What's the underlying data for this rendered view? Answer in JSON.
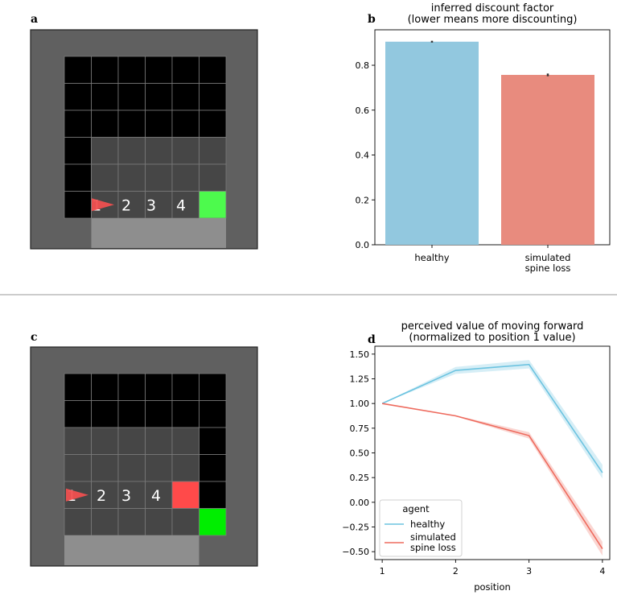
{
  "panels": {
    "a": {
      "label": "a",
      "numbers": [
        "1",
        "2",
        "3",
        "4"
      ]
    },
    "b": {
      "label": "b"
    },
    "c": {
      "label": "c",
      "numbers": [
        "1",
        "2",
        "3",
        "4"
      ]
    },
    "d": {
      "label": "d"
    }
  },
  "colors": {
    "wall": "#606060",
    "black_cell": "#000000",
    "floor": "#464646",
    "ledge": "#8e8e8e",
    "grid_line": "#7a7a7a",
    "goal_green_a": "#4dfa4d",
    "goal_green_c": "#00ee00",
    "red_block": "#ff4a4a",
    "agent": "#f05050",
    "healthy": "#92c8df",
    "spine_loss": "#e88b7e",
    "healthy_line": "#6cc3e0",
    "spine_loss_line": "#ee6b5e"
  },
  "chart_data": [
    {
      "type": "bar",
      "title": "inferred discount factor\n(lower means more discounting)",
      "title_lines": [
        "inferred discount factor",
        "(lower means more discounting)"
      ],
      "categories": [
        "healthy",
        "simulated\nspine loss"
      ],
      "category_lines": [
        [
          "healthy"
        ],
        [
          "simulated",
          "spine loss"
        ]
      ],
      "values": [
        0.905,
        0.757
      ],
      "error": [
        0.004,
        0.006
      ],
      "ylim": [
        0,
        0.958
      ],
      "yticks": [
        0.0,
        0.2,
        0.4,
        0.6,
        0.8
      ],
      "ytick_labels": [
        "0.0",
        "0.2",
        "0.4",
        "0.6",
        "0.8"
      ],
      "xlabel": "",
      "ylabel": ""
    },
    {
      "type": "line",
      "title": "perceived value of moving forward\n(normalized to position 1 value)",
      "title_lines": [
        "perceived value of moving forward",
        "(normalized to position 1 value)"
      ],
      "x": [
        1,
        2,
        3,
        4
      ],
      "xticks": [
        1,
        2,
        3,
        4
      ],
      "xtick_labels": [
        "1",
        "2",
        "3",
        "4"
      ],
      "xlim": [
        0.9,
        4.1
      ],
      "ylim": [
        -0.58,
        1.58
      ],
      "yticks": [
        -0.5,
        -0.25,
        0.0,
        0.25,
        0.5,
        0.75,
        1.0,
        1.25,
        1.5
      ],
      "ytick_labels": [
        "−0.50",
        "−0.25",
        "0.00",
        "0.25",
        "0.50",
        "0.75",
        "1.00",
        "1.25",
        "1.50"
      ],
      "xlabel": "position",
      "ylabel": "",
      "series": [
        {
          "name": "healthy",
          "values": [
            1.0,
            1.335,
            1.395,
            0.3
          ],
          "lower": [
            1.0,
            1.3,
            1.355,
            0.24
          ],
          "upper": [
            1.0,
            1.37,
            1.44,
            0.38
          ]
        },
        {
          "name": "simulated spine loss",
          "values": [
            1.0,
            0.875,
            0.675,
            -0.47
          ],
          "lower": [
            1.0,
            0.87,
            0.645,
            -0.54
          ],
          "upper": [
            1.0,
            0.88,
            0.71,
            -0.4
          ]
        }
      ],
      "legend": {
        "title": "agent",
        "entries": [
          "healthy",
          "simulated",
          "spine loss"
        ],
        "position": "lower-left"
      }
    }
  ]
}
